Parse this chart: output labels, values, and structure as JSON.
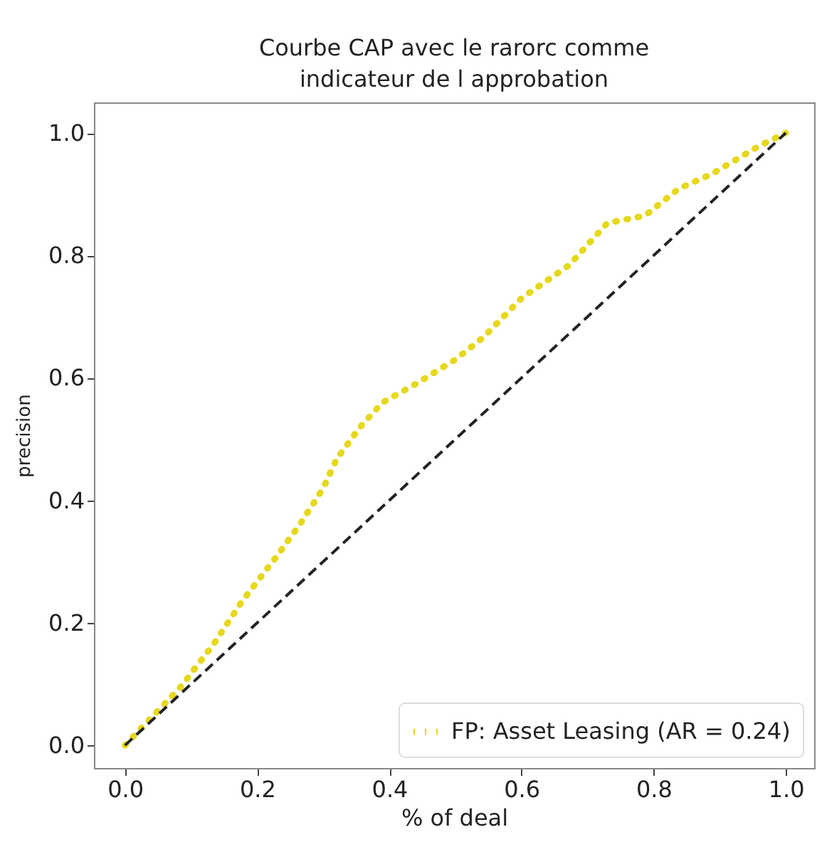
{
  "chart_data": {
    "type": "line",
    "title": [
      "Courbe CAP avec le rarorc comme",
      "indicateur de l approbation"
    ],
    "xlabel": "% of deal",
    "ylabel": "precision",
    "xlim": [
      -0.047,
      1.043
    ],
    "ylim": [
      -0.037,
      1.05
    ],
    "xticks": [
      {
        "value": 0,
        "label": "0.0"
      },
      {
        "value": 0.2,
        "label": "0.2"
      },
      {
        "value": 0.4,
        "label": "0.4"
      },
      {
        "value": 0.6,
        "label": "0.6"
      },
      {
        "value": 0.8,
        "label": "0.8"
      },
      {
        "value": 1,
        "label": "1.0"
      }
    ],
    "yticks": [
      {
        "value": 0,
        "label": "0.0"
      },
      {
        "value": 0.2,
        "label": "0.2"
      },
      {
        "value": 0.4,
        "label": "0.4"
      },
      {
        "value": 0.6,
        "label": "0.6"
      },
      {
        "value": 0.8,
        "label": "0.8"
      },
      {
        "value": 1,
        "label": "1.0"
      }
    ],
    "grid": false,
    "legend": "bottom right",
    "marker": "none",
    "series": [
      {
        "name": "FP: Asset Leasing (AR = 0.24)",
        "color": "#e6d81c",
        "line_style": "dotted",
        "x": [
          0,
          0.084,
          0.134,
          0.177,
          0.227,
          0.263,
          0.3,
          0.32,
          0.356,
          0.39,
          0.44,
          0.5,
          0.543,
          0.6,
          0.672,
          0.73,
          0.787,
          0.838,
          0.888,
          0.96,
          1.0
        ],
        "values": [
          0,
          0.095,
          0.165,
          0.235,
          0.305,
          0.358,
          0.42,
          0.467,
          0.52,
          0.56,
          0.59,
          0.63,
          0.667,
          0.73,
          0.784,
          0.853,
          0.865,
          0.909,
          0.933,
          0.979,
          1.0
        ]
      },
      {
        "color": "#222222",
        "line_style": "dashed",
        "x": [
          0,
          1
        ],
        "values": [
          0,
          1
        ]
      }
    ]
  }
}
